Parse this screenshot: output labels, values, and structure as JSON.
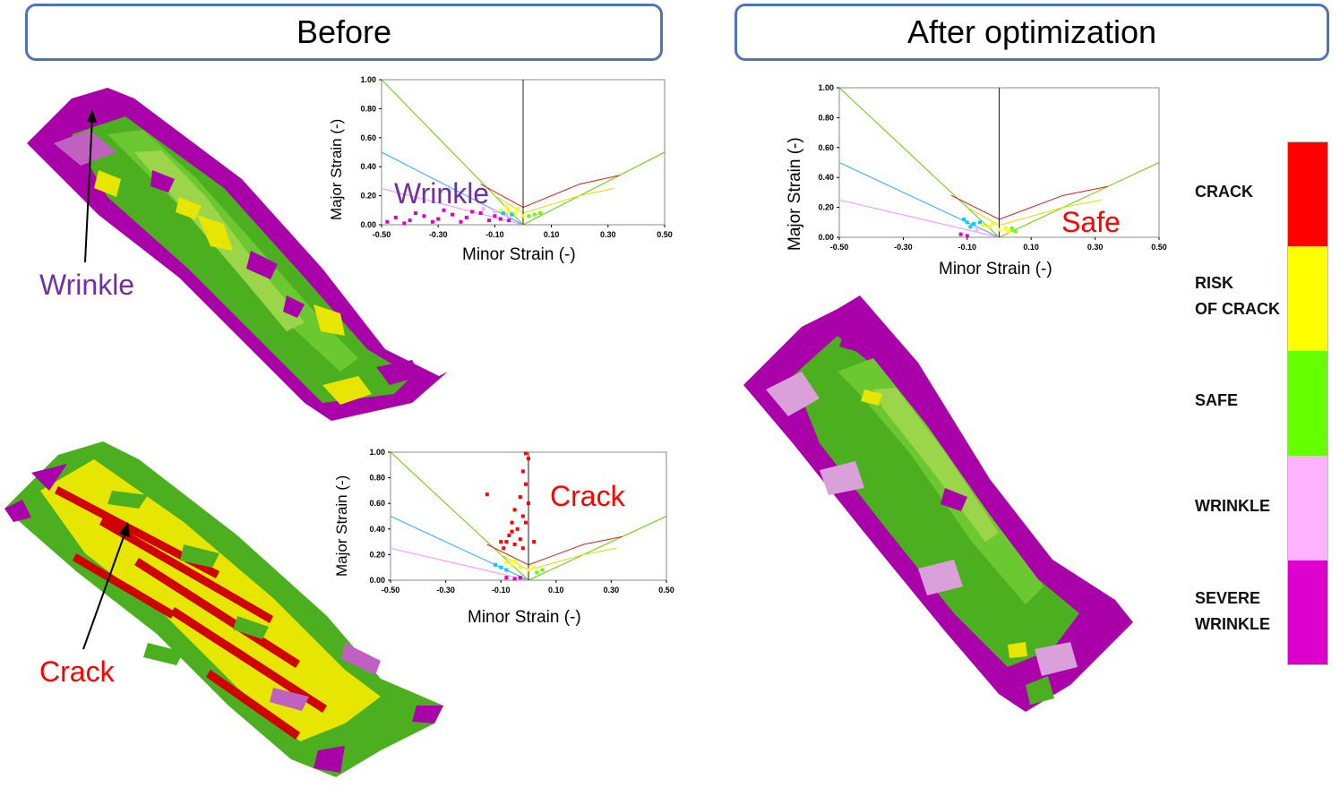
{
  "headers": {
    "before": "Before",
    "after": "After optimization"
  },
  "callouts": {
    "wrinkle": "Wrinkle",
    "crack": "Crack"
  },
  "axis": {
    "x_label": "Minor Strain (-)",
    "y_label": "Major Strain (-)",
    "x_ticks": [
      "-0.50",
      "-0.30",
      "-0.10",
      "0.10",
      "0.30",
      "0.50"
    ],
    "y_ticks": [
      "1.00",
      "0.80",
      "0.60",
      "0.40",
      "0.20",
      "0.00"
    ]
  },
  "plot_annotations": {
    "wrinkle": "Wrinkle",
    "crack": "Crack",
    "safe": "Safe"
  },
  "legend": {
    "items": [
      {
        "label": "CRACK",
        "color": "#ff0000"
      },
      {
        "label": "RISK OF CRACK",
        "color": "#ffff00"
      },
      {
        "label": "SAFE",
        "color": "#66ff00"
      },
      {
        "label": "WRINKLE",
        "color": "#ffb3ff"
      },
      {
        "label": "SEVERE WRINKLE",
        "color": "#dd00cc"
      }
    ]
  },
  "colors": {
    "header_border": "#4f74b5",
    "wrinkle_text": "#7030a0",
    "crack_text": "#ff0000",
    "safe_text": "#ff0000",
    "severe_wrinkle": "#aa00aa",
    "safe_green": "#4caf20",
    "risk_yellow": "#e6e600",
    "crack_red": "#d00000"
  },
  "chart_data": [
    {
      "type": "scatter",
      "name": "before-wrinkle-fld",
      "xlabel": "Minor Strain (-)",
      "ylabel": "Major Strain (-)",
      "xlim": [
        -0.5,
        0.5
      ],
      "ylim": [
        0,
        1.0
      ],
      "annotation": "Wrinkle",
      "point_groups": [
        {
          "color": "#dd00cc",
          "points": [
            [
              -0.48,
              0.02
            ],
            [
              -0.45,
              0.05
            ],
            [
              -0.4,
              0.03
            ],
            [
              -0.35,
              0.06
            ],
            [
              -0.3,
              0.04
            ],
            [
              -0.25,
              0.07
            ],
            [
              -0.2,
              0.05
            ],
            [
              -0.15,
              0.08
            ],
            [
              -0.1,
              0.06
            ],
            [
              -0.05,
              0.03
            ],
            [
              -0.42,
              0.01
            ],
            [
              -0.32,
              0.02
            ],
            [
              -0.22,
              0.02
            ],
            [
              -0.12,
              0.03
            ],
            [
              -0.38,
              0.08
            ],
            [
              -0.28,
              0.1
            ],
            [
              -0.18,
              0.09
            ],
            [
              -0.08,
              0.04
            ]
          ]
        },
        {
          "color": "#ffb3ff",
          "points": [
            [
              -0.1,
              0.09
            ],
            [
              -0.06,
              0.07
            ],
            [
              -0.14,
              0.11
            ]
          ]
        },
        {
          "color": "#ffff00",
          "points": [
            [
              -0.08,
              0.1
            ],
            [
              -0.05,
              0.09
            ],
            [
              -0.03,
              0.08
            ],
            [
              0.0,
              0.06
            ],
            [
              -0.02,
              0.11
            ],
            [
              -0.06,
              0.12
            ]
          ]
        },
        {
          "color": "#00ccff",
          "points": [
            [
              -0.07,
              0.08
            ],
            [
              -0.04,
              0.07
            ]
          ]
        },
        {
          "color": "#66ff00",
          "points": [
            [
              0.02,
              0.06
            ],
            [
              0.04,
              0.07
            ],
            [
              0.06,
              0.08
            ]
          ]
        }
      ]
    },
    {
      "type": "scatter",
      "name": "before-crack-fld",
      "xlabel": "Minor Strain (-)",
      "ylabel": "Major Strain (-)",
      "xlim": [
        -0.5,
        0.5
      ],
      "ylim": [
        0,
        1.0
      ],
      "annotation": "Crack",
      "point_groups": [
        {
          "color": "#ff0000",
          "points": [
            [
              -0.01,
              0.99
            ],
            [
              0.0,
              0.95
            ],
            [
              -0.02,
              0.85
            ],
            [
              -0.01,
              0.75
            ],
            [
              -0.03,
              0.65
            ],
            [
              -0.05,
              0.55
            ],
            [
              -0.02,
              0.5
            ],
            [
              -0.06,
              0.45
            ],
            [
              -0.04,
              0.4
            ],
            [
              -0.07,
              0.35
            ],
            [
              -0.03,
              0.32
            ],
            [
              -0.08,
              0.3
            ],
            [
              -0.05,
              0.28
            ],
            [
              -0.02,
              0.25
            ],
            [
              -0.09,
              0.25
            ],
            [
              -0.15,
              0.67
            ],
            [
              0.0,
              0.6
            ],
            [
              -0.01,
              0.45
            ],
            [
              -0.06,
              0.38
            ],
            [
              -0.1,
              0.3
            ],
            [
              0.02,
              0.3
            ]
          ]
        },
        {
          "color": "#ffff00",
          "points": [
            [
              -0.06,
              0.12
            ],
            [
              -0.03,
              0.1
            ],
            [
              0.0,
              0.08
            ],
            [
              -0.05,
              0.15
            ],
            [
              0.02,
              0.1
            ],
            [
              -0.08,
              0.14
            ]
          ]
        },
        {
          "color": "#00ccff",
          "points": [
            [
              -0.1,
              0.1
            ],
            [
              -0.08,
              0.08
            ],
            [
              -0.12,
              0.12
            ]
          ]
        },
        {
          "color": "#dd00cc",
          "points": [
            [
              -0.08,
              0.02
            ],
            [
              -0.05,
              0.01
            ],
            [
              -0.03,
              0.02
            ]
          ]
        },
        {
          "color": "#66ff00",
          "points": [
            [
              0.03,
              0.06
            ],
            [
              0.05,
              0.08
            ]
          ]
        }
      ]
    },
    {
      "type": "scatter",
      "name": "after-fld",
      "xlabel": "Minor Strain (-)",
      "ylabel": "Major Strain (-)",
      "xlim": [
        -0.5,
        0.5
      ],
      "ylim": [
        0,
        1.0
      ],
      "annotation": "Safe",
      "point_groups": [
        {
          "color": "#00ccff",
          "points": [
            [
              -0.11,
              0.12
            ],
            [
              -0.1,
              0.1
            ],
            [
              -0.08,
              0.09
            ],
            [
              -0.06,
              0.1
            ],
            [
              -0.09,
              0.07
            ]
          ]
        },
        {
          "color": "#ffff00",
          "points": [
            [
              -0.05,
              0.08
            ],
            [
              -0.03,
              0.07
            ],
            [
              0.0,
              0.05
            ],
            [
              0.02,
              0.06
            ],
            [
              -0.02,
              0.09
            ],
            [
              0.03,
              0.04
            ]
          ]
        },
        {
          "color": "#dd00cc",
          "points": [
            [
              -0.12,
              0.02
            ],
            [
              -0.1,
              0.01
            ]
          ]
        },
        {
          "color": "#66ff00",
          "points": [
            [
              0.05,
              0.04
            ],
            [
              0.04,
              0.06
            ]
          ]
        },
        {
          "color": "#ffb3ff",
          "points": [
            [
              -0.07,
              0.05
            ]
          ]
        }
      ]
    }
  ]
}
